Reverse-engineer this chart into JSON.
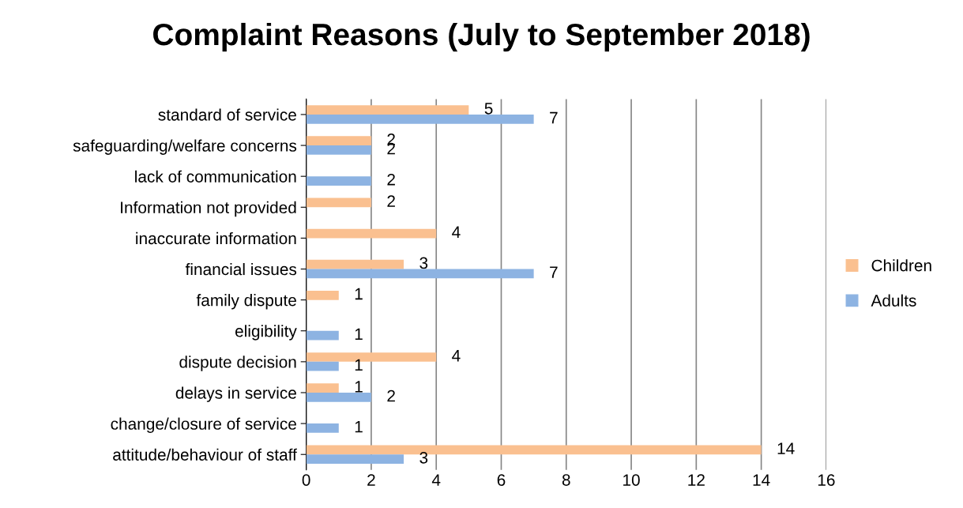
{
  "chart_data": {
    "type": "bar",
    "orientation": "horizontal",
    "title": "Complaint Reasons (July to September 2018)",
    "categories": [
      "standard of service",
      "safeguarding/welfare concerns",
      "lack of communication",
      "Information not provided",
      "inaccurate information",
      "financial issues",
      "family dispute",
      "eligibility",
      "dispute decision",
      "delays in service",
      "change/closure of service",
      "attitude/behaviour of staff"
    ],
    "series": [
      {
        "name": "Children",
        "color": "#fac090",
        "values": [
          5,
          2,
          null,
          2,
          4,
          3,
          1,
          null,
          4,
          1,
          null,
          14
        ]
      },
      {
        "name": "Adults",
        "color": "#8db3e2",
        "values": [
          7,
          2,
          2,
          null,
          null,
          7,
          null,
          1,
          1,
          2,
          1,
          3
        ]
      }
    ],
    "xlim": [
      0,
      16
    ],
    "xticks": [
      0,
      2,
      4,
      6,
      8,
      10,
      12,
      14,
      16
    ],
    "grid": "x",
    "legend": "right",
    "data_labels": true
  }
}
